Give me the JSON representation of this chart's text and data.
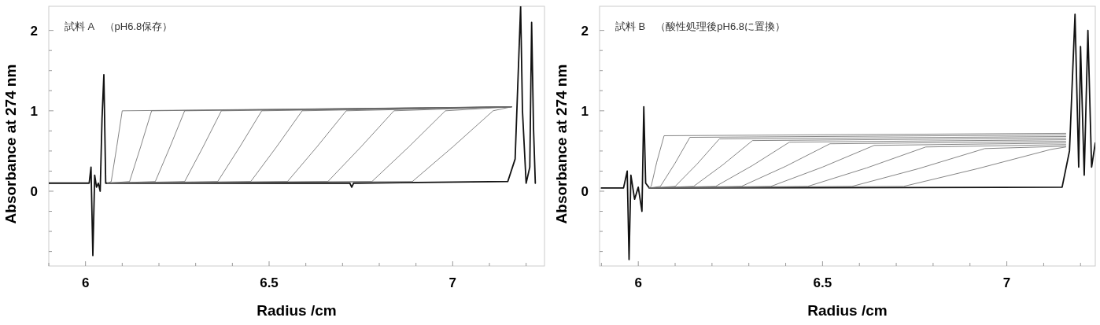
{
  "chart_data": [
    {
      "type": "line",
      "title": "試料 A　（pH6.8保存）",
      "xlabel": "Radius /cm",
      "ylabel": "Absorbance at 274 nm",
      "xlim": [
        5.9,
        7.25
      ],
      "ylim": [
        -0.93,
        2.3
      ],
      "xticks": [
        {
          "value": 5.9,
          "label": null
        },
        6,
        {
          "value": 6.1,
          "label": null
        },
        {
          "value": 6.2,
          "label": null
        },
        {
          "value": 6.3,
          "label": null
        },
        {
          "value": 6.4,
          "label": null
        },
        6.5,
        {
          "value": 6.6,
          "label": null
        },
        {
          "value": 6.7,
          "label": null
        },
        {
          "value": 6.8,
          "label": null
        },
        {
          "value": 6.9,
          "label": null
        },
        7,
        {
          "value": 7.1,
          "label": null
        },
        {
          "value": 7.2,
          "label": null
        }
      ],
      "yticks": [
        {
          "value": -0.75,
          "label": null
        },
        {
          "value": -0.5,
          "label": null
        },
        {
          "value": -0.25,
          "label": null
        },
        0,
        {
          "value": 0.25,
          "label": null
        },
        {
          "value": 0.5,
          "label": null
        },
        {
          "value": 0.75,
          "label": null
        },
        1,
        {
          "value": 1.25,
          "label": null
        },
        {
          "value": 1.5,
          "label": null
        },
        {
          "value": 1.75,
          "label": null
        },
        2
      ],
      "grid": false,
      "marker": "none",
      "line_style": "solid",
      "series": [
        {
          "color": "#111111",
          "x": [
            5.9,
            6.01,
            6.015,
            6.02,
            6.025,
            6.03,
            6.035,
            6.04,
            6.045,
            6.05,
            6.055,
            6.06,
            6.72,
            6.725,
            6.73,
            7.15,
            7.17,
            7.185,
            7.19,
            7.2,
            7.21,
            7.215,
            7.22,
            7.225
          ],
          "values": [
            0.1,
            0.1,
            0.3,
            -0.8,
            0.2,
            0.05,
            0.1,
            0.0,
            0.9,
            1.45,
            0.1,
            0.1,
            0.1,
            0.05,
            0.1,
            0.12,
            0.4,
            2.3,
            1.0,
            0.1,
            0.3,
            2.1,
            0.8,
            0.1
          ]
        },
        {
          "color": "#666666",
          "x": [
            6.06,
            6.07,
            6.085,
            6.1,
            7.16
          ],
          "values": [
            0.1,
            0.12,
            0.55,
            1.0,
            1.05
          ]
        },
        {
          "color": "#666666",
          "x": [
            6.06,
            6.12,
            6.15,
            6.18,
            7.16
          ],
          "values": [
            0.1,
            0.12,
            0.55,
            1.0,
            1.05
          ]
        },
        {
          "color": "#666666",
          "x": [
            6.06,
            6.19,
            6.23,
            6.27,
            7.16
          ],
          "values": [
            0.1,
            0.12,
            0.55,
            1.0,
            1.05
          ]
        },
        {
          "color": "#666666",
          "x": [
            6.06,
            6.27,
            6.32,
            6.37,
            7.16
          ],
          "values": [
            0.1,
            0.12,
            0.55,
            1.0,
            1.05
          ]
        },
        {
          "color": "#666666",
          "x": [
            6.06,
            6.36,
            6.42,
            6.48,
            7.16
          ],
          "values": [
            0.1,
            0.12,
            0.55,
            1.0,
            1.05
          ]
        },
        {
          "color": "#666666",
          "x": [
            6.06,
            6.45,
            6.52,
            6.59,
            7.16
          ],
          "values": [
            0.1,
            0.12,
            0.55,
            1.0,
            1.05
          ]
        },
        {
          "color": "#666666",
          "x": [
            6.06,
            6.55,
            6.63,
            6.71,
            7.16
          ],
          "values": [
            0.1,
            0.12,
            0.55,
            1.0,
            1.05
          ]
        },
        {
          "color": "#666666",
          "x": [
            6.06,
            6.66,
            6.75,
            6.84,
            7.16
          ],
          "values": [
            0.1,
            0.12,
            0.55,
            1.0,
            1.05
          ]
        },
        {
          "color": "#666666",
          "x": [
            6.06,
            6.78,
            6.88,
            6.98,
            7.16
          ],
          "values": [
            0.1,
            0.12,
            0.55,
            1.0,
            1.05
          ]
        },
        {
          "color": "#666666",
          "x": [
            6.06,
            6.89,
            7.0,
            7.11,
            7.16
          ],
          "values": [
            0.1,
            0.12,
            0.55,
            1.0,
            1.05
          ]
        }
      ]
    },
    {
      "type": "line",
      "title": "試料 B　（酸性処理後pH6.8に置換）",
      "xlabel": "Radius /cm",
      "ylabel": "Absorbance at 274 nm",
      "xlim": [
        5.895,
        7.24
      ],
      "ylim": [
        -0.93,
        2.3
      ],
      "xticks": [
        {
          "value": 5.9,
          "label": null
        },
        6,
        {
          "value": 6.1,
          "label": null
        },
        {
          "value": 6.2,
          "label": null
        },
        {
          "value": 6.3,
          "label": null
        },
        {
          "value": 6.4,
          "label": null
        },
        6.5,
        {
          "value": 6.6,
          "label": null
        },
        {
          "value": 6.7,
          "label": null
        },
        {
          "value": 6.8,
          "label": null
        },
        {
          "value": 6.9,
          "label": null
        },
        7,
        {
          "value": 7.1,
          "label": null
        },
        {
          "value": 7.2,
          "label": null
        }
      ],
      "yticks": [
        {
          "value": -0.75,
          "label": null
        },
        {
          "value": -0.5,
          "label": null
        },
        {
          "value": -0.25,
          "label": null
        },
        0,
        {
          "value": 0.25,
          "label": null
        },
        {
          "value": 0.5,
          "label": null
        },
        {
          "value": 0.75,
          "label": null
        },
        1,
        {
          "value": 1.25,
          "label": null
        },
        {
          "value": 1.5,
          "label": null
        },
        {
          "value": 1.75,
          "label": null
        },
        2
      ],
      "grid": false,
      "marker": "none",
      "line_style": "solid",
      "series": [
        {
          "color": "#111111",
          "x": [
            5.9,
            5.96,
            5.97,
            5.975,
            5.98,
            5.99,
            6.0,
            6.01,
            6.015,
            6.02,
            6.03,
            7.15,
            7.17,
            7.185,
            7.195,
            7.2,
            7.21,
            7.22,
            7.23,
            7.24
          ],
          "values": [
            0.04,
            0.04,
            0.25,
            -0.85,
            0.2,
            -0.1,
            0.05,
            -0.25,
            1.05,
            0.1,
            0.04,
            0.05,
            0.5,
            2.2,
            0.3,
            1.8,
            0.2,
            2.0,
            0.3,
            0.6
          ]
        },
        {
          "color": "#666666",
          "x": [
            6.03,
            6.035,
            6.05,
            6.07,
            7.16
          ],
          "values": [
            0.04,
            0.06,
            0.36,
            0.69,
            0.72
          ]
        },
        {
          "color": "#666666",
          "x": [
            6.03,
            6.06,
            6.1,
            6.14,
            7.16
          ],
          "values": [
            0.04,
            0.06,
            0.35,
            0.67,
            0.7
          ]
        },
        {
          "color": "#666666",
          "x": [
            6.03,
            6.1,
            6.16,
            6.22,
            7.16
          ],
          "values": [
            0.04,
            0.06,
            0.34,
            0.65,
            0.68
          ]
        },
        {
          "color": "#666666",
          "x": [
            6.03,
            6.15,
            6.23,
            6.31,
            7.16
          ],
          "values": [
            0.04,
            0.06,
            0.33,
            0.63,
            0.66
          ]
        },
        {
          "color": "#666666",
          "x": [
            6.03,
            6.21,
            6.31,
            6.41,
            7.16
          ],
          "values": [
            0.04,
            0.06,
            0.32,
            0.61,
            0.64
          ]
        },
        {
          "color": "#666666",
          "x": [
            6.03,
            6.28,
            6.4,
            6.52,
            7.16
          ],
          "values": [
            0.04,
            0.06,
            0.31,
            0.59,
            0.62
          ]
        },
        {
          "color": "#666666",
          "x": [
            6.03,
            6.36,
            6.5,
            6.64,
            7.16
          ],
          "values": [
            0.04,
            0.06,
            0.3,
            0.57,
            0.6
          ]
        },
        {
          "color": "#666666",
          "x": [
            6.03,
            6.46,
            6.62,
            6.78,
            7.16
          ],
          "values": [
            0.04,
            0.06,
            0.29,
            0.55,
            0.58
          ]
        },
        {
          "color": "#666666",
          "x": [
            6.03,
            6.58,
            6.76,
            6.94,
            7.16
          ],
          "values": [
            0.04,
            0.06,
            0.28,
            0.53,
            0.56
          ]
        },
        {
          "color": "#666666",
          "x": [
            6.03,
            6.72,
            6.92,
            7.12,
            7.16
          ],
          "values": [
            0.04,
            0.06,
            0.28,
            0.52,
            0.55
          ]
        }
      ]
    }
  ]
}
